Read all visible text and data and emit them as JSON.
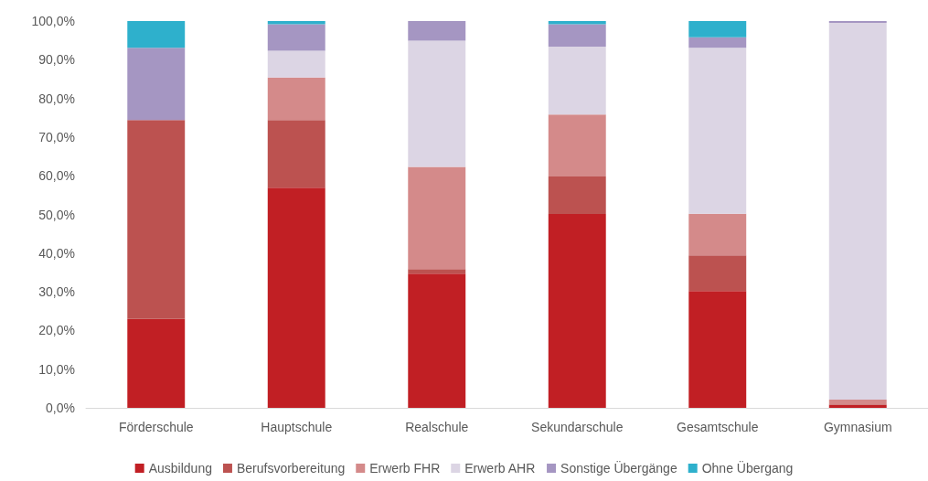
{
  "chart_data": {
    "type": "bar",
    "stacked": true,
    "categories": [
      "Förderschule",
      "Hauptschule",
      "Realschule",
      "Sekundarschule",
      "Gesamtschule",
      "Gymnasium"
    ],
    "series": [
      {
        "name": "Ausbildung",
        "color": "#c11f24",
        "values": [
          23.0,
          56.9,
          34.7,
          50.1,
          30.2,
          0.7
        ]
      },
      {
        "name": "Berufsvorbereitung",
        "color": "#bc5250",
        "values": [
          51.4,
          17.5,
          1.2,
          9.7,
          9.2,
          0.2
        ]
      },
      {
        "name": "Erwerb FHR",
        "color": "#d48a8a",
        "values": [
          0,
          11.0,
          26.4,
          16.0,
          10.8,
          1.2
        ]
      },
      {
        "name": "Erwerb AHR",
        "color": "#dcd5e4",
        "values": [
          0,
          6.9,
          32.6,
          17.6,
          42.9,
          97.4
        ]
      },
      {
        "name": "Sonstige Übergänge",
        "color": "#a596c2",
        "values": [
          18.7,
          6.9,
          5.1,
          5.8,
          2.7,
          0.5
        ]
      },
      {
        "name": "Ohne Übergang",
        "color": "#2eb0cc",
        "values": [
          6.9,
          0.8,
          0,
          0.8,
          4.2,
          0
        ]
      }
    ],
    "ylim": [
      0,
      100
    ],
    "yticks": [
      {
        "value": 0,
        "label": "0,0%"
      },
      {
        "value": 10,
        "label": "10,0%"
      },
      {
        "value": 20,
        "label": "20,0%"
      },
      {
        "value": 30,
        "label": "30,0%"
      },
      {
        "value": 40,
        "label": "40,0%"
      },
      {
        "value": 50,
        "label": "50,0%"
      },
      {
        "value": 60,
        "label": "60,0%"
      },
      {
        "value": 70,
        "label": "70,0%"
      },
      {
        "value": 80,
        "label": "80,0%"
      },
      {
        "value": 90,
        "label": "90,0%"
      },
      {
        "value": 100,
        "label": "100,0%"
      }
    ],
    "grid": false,
    "legend": "bottom"
  }
}
